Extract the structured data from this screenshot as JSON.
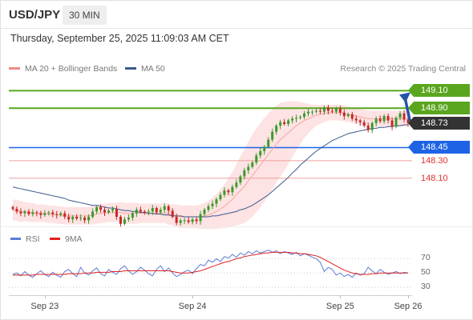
{
  "header": {
    "pair": "USD/JPY",
    "interval": "30 MIN",
    "datetime": "Thursday, September 25, 2025 11:09:03 AM CET"
  },
  "legend": {
    "ma20": "MA 20 + Bollinger Bands",
    "ma50": "MA 50",
    "ma20_color": "#f08a84",
    "ma50_color": "#3a5a8c",
    "credit": "Research © 2025 Trading Central"
  },
  "rsi_legend": {
    "rsi": "RSI",
    "ma": "9MA",
    "rsi_color": "#5b7bd6",
    "ma_color": "#e02020"
  },
  "levels": [
    {
      "value": 149.1,
      "label": "149.10",
      "color": "#5aa61e",
      "style": "tag"
    },
    {
      "value": 148.9,
      "label": "148.90",
      "color": "#5aa61e",
      "style": "tag"
    },
    {
      "value": 148.73,
      "label": "148.73",
      "color": "#333333",
      "style": "tag"
    },
    {
      "value": 148.45,
      "label": "148.45",
      "color": "#1e63e6",
      "style": "tag"
    },
    {
      "value": 148.3,
      "label": "148.30",
      "color": "#e03030",
      "style": "plain"
    },
    {
      "value": 148.1,
      "label": "148.10",
      "color": "#e03030",
      "style": "plain"
    }
  ],
  "chart_data": {
    "type": "candlestick",
    "y_range": [
      147.55,
      149.24
    ],
    "x_range": [
      0,
      101
    ],
    "x_ticks": [
      {
        "x": 9,
        "label": "Sep 23"
      },
      {
        "x": 46,
        "label": "Sep 24"
      },
      {
        "x": 83,
        "label": "Sep 25"
      },
      {
        "x": 100,
        "label": "Sep 26"
      }
    ],
    "last_price": 148.73,
    "forecast_target": 149.1,
    "candles_close": [
      147.75,
      147.72,
      147.7,
      147.72,
      147.69,
      147.71,
      147.7,
      147.68,
      147.7,
      147.71,
      147.69,
      147.68,
      147.7,
      147.66,
      147.63,
      147.66,
      147.64,
      147.65,
      147.62,
      147.66,
      147.72,
      147.77,
      147.74,
      147.71,
      147.73,
      147.75,
      147.66,
      147.58,
      147.63,
      147.65,
      147.7,
      147.74,
      147.72,
      147.71,
      147.72,
      147.76,
      147.71,
      147.74,
      147.78,
      147.73,
      147.66,
      147.59,
      147.62,
      147.62,
      147.6,
      147.63,
      147.61,
      147.69,
      147.74,
      147.78,
      147.81,
      147.86,
      147.91,
      147.96,
      147.94,
      148.0,
      148.05,
      148.12,
      148.19,
      148.23,
      148.28,
      148.36,
      148.41,
      148.46,
      148.54,
      148.63,
      148.7,
      148.74,
      148.72,
      148.76,
      148.78,
      148.79,
      148.8,
      148.84,
      148.86,
      148.86,
      148.87,
      148.86,
      148.91,
      148.87,
      148.86,
      148.9,
      148.85,
      148.81,
      148.83,
      148.78,
      148.76,
      148.74,
      148.7,
      148.65,
      148.73,
      148.78,
      148.75,
      148.81,
      148.76,
      148.69,
      148.79,
      148.84,
      148.77,
      148.73
    ],
    "ma50": [
      148.0,
      147.99,
      147.98,
      147.97,
      147.96,
      147.95,
      147.94,
      147.93,
      147.92,
      147.91,
      147.9,
      147.89,
      147.88,
      147.87,
      147.85,
      147.84,
      147.83,
      147.82,
      147.81,
      147.8,
      147.79,
      147.79,
      147.78,
      147.77,
      147.76,
      147.76,
      147.75,
      147.74,
      147.73,
      147.73,
      147.72,
      147.72,
      147.71,
      147.71,
      147.7,
      147.7,
      147.69,
      147.69,
      147.68,
      147.68,
      147.67,
      147.67,
      147.67,
      147.66,
      147.66,
      147.66,
      147.66,
      147.66,
      147.66,
      147.66,
      147.67,
      147.67,
      147.68,
      147.69,
      147.7,
      147.71,
      147.72,
      147.74,
      147.75,
      147.77,
      147.79,
      147.82,
      147.85,
      147.88,
      147.91,
      147.95,
      147.99,
      148.03,
      148.07,
      148.11,
      148.16,
      148.2,
      148.25,
      148.29,
      148.33,
      148.37,
      148.41,
      148.44,
      148.47,
      148.5,
      148.53,
      148.55,
      148.57,
      148.59,
      148.61,
      148.62,
      148.63,
      148.64,
      148.65,
      148.66,
      148.67,
      148.67,
      148.68,
      148.68,
      148.69,
      148.69,
      148.7,
      148.7,
      148.71,
      148.71
    ],
    "ma20": [
      147.74,
      147.73,
      147.72,
      147.72,
      147.71,
      147.71,
      147.7,
      147.7,
      147.7,
      147.69,
      147.69,
      147.68,
      147.68,
      147.67,
      147.67,
      147.67,
      147.67,
      147.67,
      147.67,
      147.67,
      147.68,
      147.69,
      147.7,
      147.7,
      147.71,
      147.71,
      147.71,
      147.71,
      147.7,
      147.7,
      147.7,
      147.7,
      147.7,
      147.7,
      147.7,
      147.7,
      147.7,
      147.7,
      147.7,
      147.69,
      147.68,
      147.67,
      147.66,
      147.66,
      147.66,
      147.66,
      147.66,
      147.66,
      147.67,
      147.68,
      147.7,
      147.72,
      147.75,
      147.78,
      147.82,
      147.86,
      147.91,
      147.96,
      148.01,
      148.07,
      148.13,
      148.19,
      148.25,
      148.31,
      148.37,
      148.43,
      148.49,
      148.54,
      148.58,
      148.62,
      148.66,
      148.7,
      148.73,
      148.76,
      148.78,
      148.8,
      148.82,
      148.83,
      148.84,
      148.85,
      148.85,
      148.85,
      148.85,
      148.84,
      148.83,
      148.82,
      148.81,
      148.8,
      148.79,
      148.78,
      148.78,
      148.78,
      148.78,
      148.78,
      148.78,
      148.78,
      148.78,
      148.78,
      148.78,
      148.78
    ],
    "bb_width": [
      0.12,
      0.12,
      0.12,
      0.11,
      0.11,
      0.11,
      0.1,
      0.1,
      0.1,
      0.1,
      0.1,
      0.1,
      0.1,
      0.1,
      0.1,
      0.1,
      0.1,
      0.1,
      0.1,
      0.1,
      0.11,
      0.11,
      0.11,
      0.11,
      0.11,
      0.11,
      0.11,
      0.12,
      0.12,
      0.12,
      0.12,
      0.12,
      0.11,
      0.11,
      0.11,
      0.11,
      0.11,
      0.11,
      0.11,
      0.12,
      0.12,
      0.13,
      0.13,
      0.13,
      0.13,
      0.13,
      0.13,
      0.14,
      0.15,
      0.16,
      0.18,
      0.2,
      0.22,
      0.25,
      0.28,
      0.31,
      0.35,
      0.39,
      0.42,
      0.45,
      0.47,
      0.48,
      0.48,
      0.48,
      0.47,
      0.46,
      0.44,
      0.42,
      0.39,
      0.36,
      0.32,
      0.28,
      0.24,
      0.2,
      0.17,
      0.14,
      0.12,
      0.11,
      0.1,
      0.09,
      0.09,
      0.09,
      0.09,
      0.09,
      0.09,
      0.09,
      0.09,
      0.09,
      0.09,
      0.09,
      0.09,
      0.09,
      0.09,
      0.09,
      0.09,
      0.09,
      0.09,
      0.09,
      0.09,
      0.09
    ],
    "rsi": {
      "ticks": [
        70,
        50,
        30
      ],
      "y_range": [
        20,
        85
      ],
      "rsi_values": [
        48,
        50,
        46,
        52,
        47,
        44,
        49,
        53,
        48,
        45,
        51,
        47,
        44,
        52,
        55,
        49,
        45,
        58,
        50,
        47,
        53,
        57,
        49,
        46,
        55,
        51,
        48,
        56,
        60,
        53,
        48,
        52,
        58,
        54,
        49,
        46,
        55,
        60,
        52,
        57,
        50,
        45,
        48,
        52,
        54,
        49,
        56,
        62,
        60,
        68,
        65,
        70,
        66,
        73,
        71,
        76,
        72,
        78,
        75,
        80,
        77,
        81,
        78,
        80,
        82,
        79,
        81,
        77,
        80,
        78,
        76,
        79,
        74,
        77,
        75,
        72,
        70,
        65,
        52,
        58,
        55,
        47,
        50,
        45,
        48,
        44,
        50,
        47,
        49,
        58,
        53,
        49,
        55,
        51,
        48,
        50,
        52,
        49,
        51,
        50
      ],
      "ma_values": [
        47,
        47,
        47,
        47,
        47,
        47,
        48,
        48,
        48,
        48,
        48,
        48,
        48,
        48,
        49,
        49,
        49,
        49,
        50,
        50,
        50,
        51,
        51,
        51,
        51,
        52,
        52,
        52,
        53,
        53,
        53,
        53,
        53,
        53,
        53,
        53,
        53,
        53,
        53,
        53,
        52,
        51,
        50,
        50,
        50,
        51,
        52,
        53,
        55,
        57,
        59,
        61,
        63,
        65,
        66,
        68,
        70,
        71,
        73,
        74,
        75,
        76,
        77,
        78,
        78,
        79,
        79,
        79,
        79,
        79,
        78,
        78,
        77,
        77,
        76,
        75,
        74,
        72,
        69,
        66,
        63,
        60,
        57,
        54,
        52,
        50,
        49,
        48,
        48,
        48,
        49,
        49,
        50,
        50,
        50,
        50,
        50,
        50,
        50,
        50
      ]
    }
  }
}
